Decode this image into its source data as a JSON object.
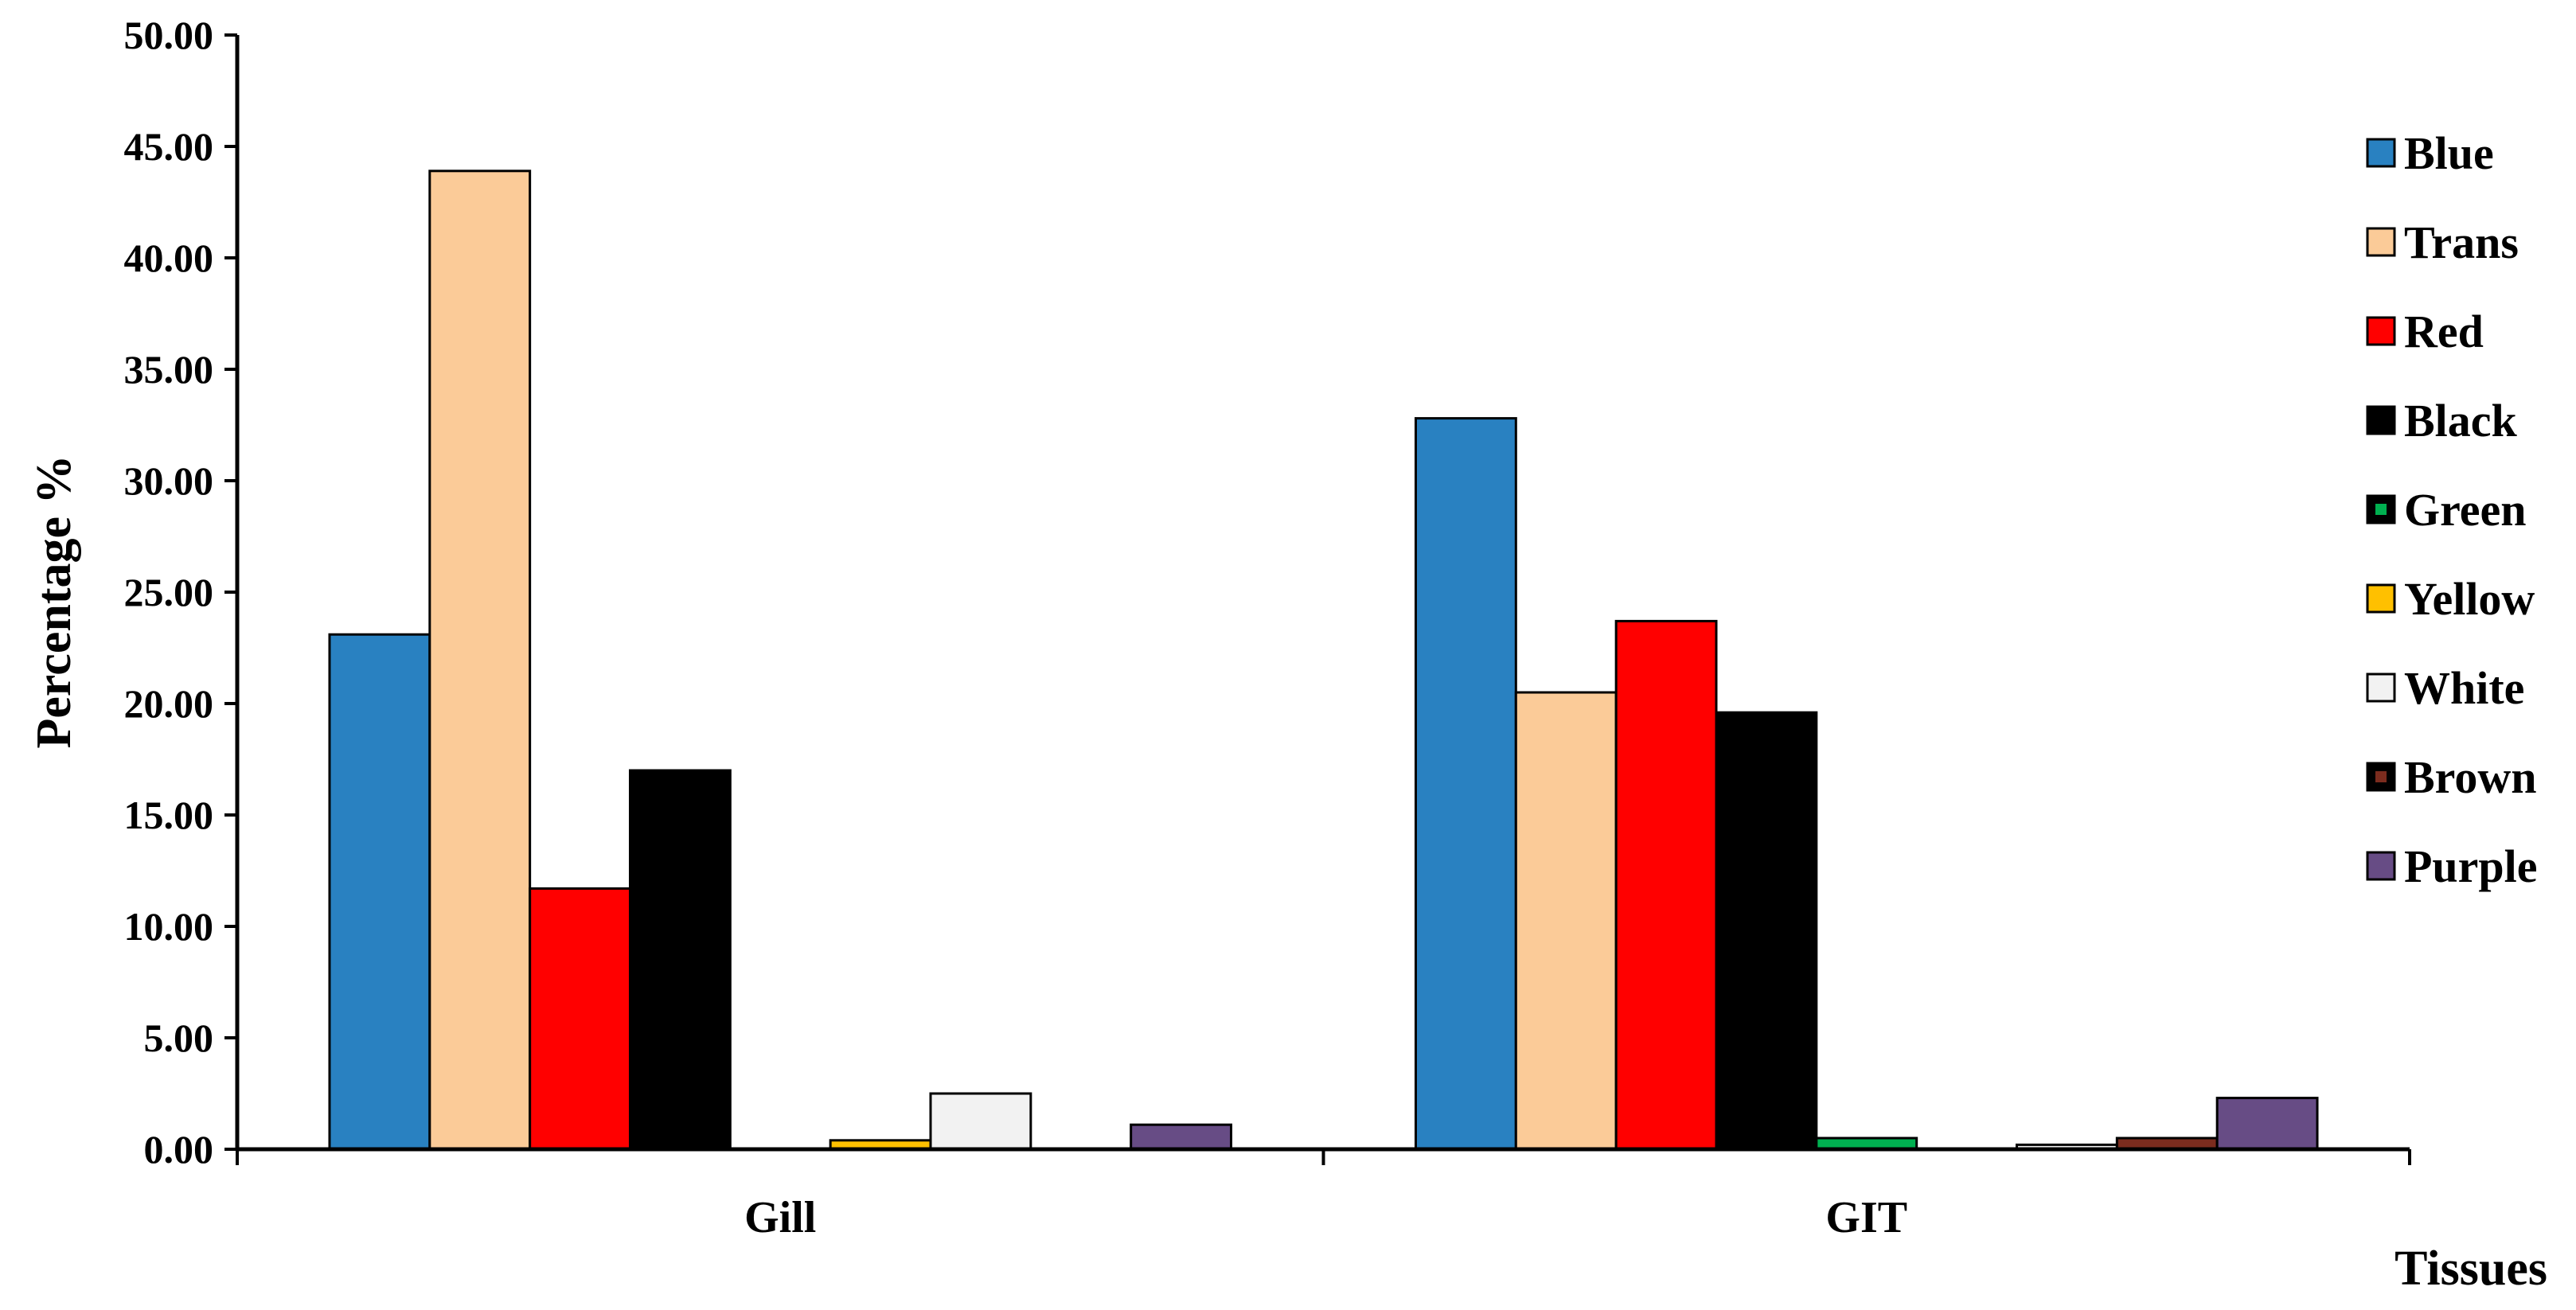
{
  "chart_data": {
    "type": "bar",
    "categories": [
      "Gill",
      "GIT"
    ],
    "xlabel": "Tissues",
    "ylabel": "Percentage %",
    "ylim": [
      0,
      50
    ],
    "yticks": [
      "0.00",
      "5.00",
      "10.00",
      "15.00",
      "20.00",
      "25.00",
      "30.00",
      "35.00",
      "40.00",
      "45.00",
      "50.00"
    ],
    "grid": false,
    "legend_position": "right",
    "series": [
      {
        "name": "Blue",
        "color": "#2981C1",
        "values": [
          23.1,
          32.8
        ]
      },
      {
        "name": "Trans",
        "color": "#FBCB98",
        "values": [
          43.9,
          20.5
        ]
      },
      {
        "name": "Red",
        "color": "#FF0000",
        "values": [
          11.7,
          23.7
        ]
      },
      {
        "name": "Black",
        "color": "#000000",
        "values": [
          17.0,
          19.6
        ]
      },
      {
        "name": "Green",
        "color": "#00B050",
        "values": [
          0.0,
          0.5
        ]
      },
      {
        "name": "Yellow",
        "color": "#FFC000",
        "values": [
          0.4,
          0.0
        ]
      },
      {
        "name": "White",
        "color": "#F2F2F2",
        "values": [
          2.5,
          0.2
        ]
      },
      {
        "name": "Brown",
        "color": "#7B2C1E",
        "values": [
          0.0,
          0.5
        ]
      },
      {
        "name": "Purple",
        "color": "#674C85",
        "values": [
          1.1,
          2.3
        ]
      }
    ]
  }
}
